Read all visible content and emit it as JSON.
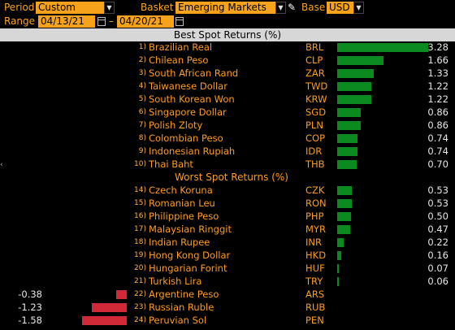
{
  "toolbar": {
    "period_label": "Period",
    "period_value": "Custom",
    "basket_label": "Basket",
    "basket_value": "Emerging Markets",
    "base_label": "Base",
    "base_value": "USD",
    "range_label": "Range",
    "range_start": "04/13/21",
    "range_sep": "–",
    "range_end": "04/20/21"
  },
  "best_header": "Best Spot Returns (%)",
  "worst_header": "Worst Spot Returns (%)",
  "colors": {
    "positive_bar": "#0b8a1f",
    "negative_bar": "#d02a38",
    "field_bg": "#f7a21b",
    "header_bg": "#d7d7d7"
  },
  "best": [
    {
      "rank": "1)",
      "name": "Brazilian Real",
      "code": "BRL",
      "value": "3.28"
    },
    {
      "rank": "2)",
      "name": "Chilean Peso",
      "code": "CLP",
      "value": "1.66"
    },
    {
      "rank": "3)",
      "name": "South African Rand",
      "code": "ZAR",
      "value": "1.33"
    },
    {
      "rank": "4)",
      "name": "Taiwanese Dollar",
      "code": "TWD",
      "value": "1.22"
    },
    {
      "rank": "5)",
      "name": "South Korean Won",
      "code": "KRW",
      "value": "1.22"
    },
    {
      "rank": "6)",
      "name": "Singapore Dollar",
      "code": "SGD",
      "value": "0.86"
    },
    {
      "rank": "7)",
      "name": "Polish Zloty",
      "code": "PLN",
      "value": "0.86"
    },
    {
      "rank": "8)",
      "name": "Colombian Peso",
      "code": "COP",
      "value": "0.74"
    },
    {
      "rank": "9)",
      "name": "Indonesian Rupiah",
      "code": "IDR",
      "value": "0.74"
    },
    {
      "rank": "10)",
      "name": "Thai Baht",
      "code": "THB",
      "value": "0.70"
    }
  ],
  "worst": [
    {
      "rank": "14)",
      "name": "Czech Koruna",
      "code": "CZK",
      "value": "0.53"
    },
    {
      "rank": "15)",
      "name": "Romanian Leu",
      "code": "RON",
      "value": "0.53"
    },
    {
      "rank": "16)",
      "name": "Philippine Peso",
      "code": "PHP",
      "value": "0.50"
    },
    {
      "rank": "17)",
      "name": "Malaysian Ringgit",
      "code": "MYR",
      "value": "0.47"
    },
    {
      "rank": "18)",
      "name": "Indian Rupee",
      "code": "INR",
      "value": "0.22"
    },
    {
      "rank": "19)",
      "name": "Hong Kong Dollar",
      "code": "HKD",
      "value": "0.16"
    },
    {
      "rank": "20)",
      "name": "Hungarian Forint",
      "code": "HUF",
      "value": "0.07"
    },
    {
      "rank": "21)",
      "name": "Turkish Lira",
      "code": "TRY",
      "value": "0.06"
    },
    {
      "rank": "22)",
      "name": "Argentine Peso",
      "code": "ARS",
      "value": "-0.38"
    },
    {
      "rank": "23)",
      "name": "Russian Ruble",
      "code": "RUB",
      "value": "-1.23"
    },
    {
      "rank": "24)",
      "name": "Peruvian Sol",
      "code": "PEN",
      "value": "-1.58"
    }
  ]
}
